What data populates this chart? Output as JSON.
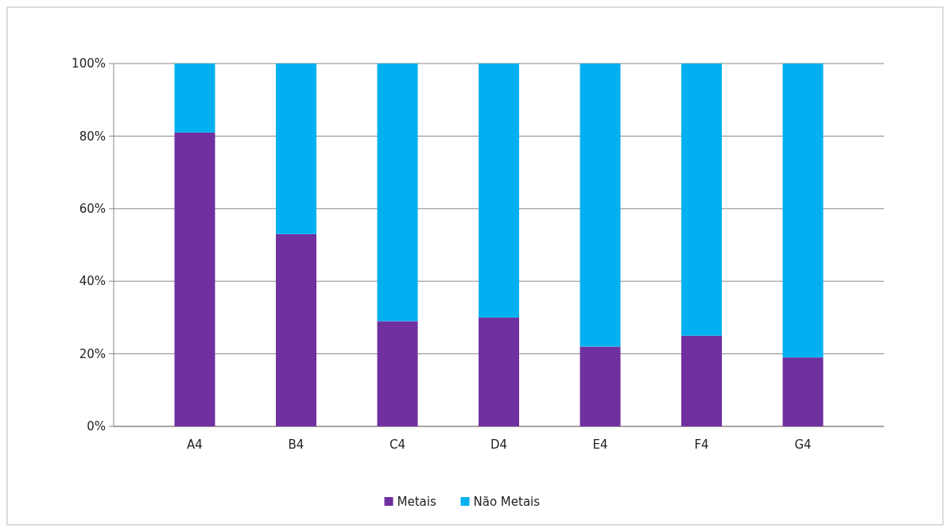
{
  "chart_data": {
    "type": "bar",
    "stacked": true,
    "categories": [
      "A4",
      "B4",
      "C4",
      "D4",
      "E4",
      "F4",
      "G4"
    ],
    "series": [
      {
        "name": "Metais",
        "color": "#7030a0",
        "values": [
          81,
          53,
          29,
          30,
          22,
          25,
          19
        ]
      },
      {
        "name": "Não Metais",
        "color": "#00b0f0",
        "values": [
          19,
          47,
          71,
          70,
          78,
          75,
          81
        ]
      }
    ],
    "ylim": [
      0,
      100
    ],
    "yticks": [
      {
        "value": 0,
        "label": "0%"
      },
      {
        "value": 20,
        "label": "20%"
      },
      {
        "value": 40,
        "label": "40%"
      },
      {
        "value": 60,
        "label": "60%"
      },
      {
        "value": 80,
        "label": "80%"
      },
      {
        "value": 100,
        "label": "100%"
      }
    ],
    "grid": "y",
    "legend": "bottom"
  }
}
